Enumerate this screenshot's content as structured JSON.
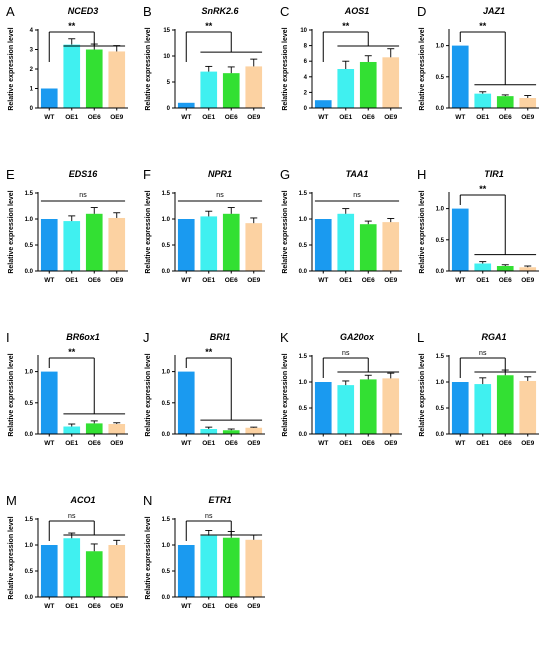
{
  "figure": {
    "bar_colors": [
      "#1a9af0",
      "#40f0f0",
      "#33e033",
      "#fcd2a2"
    ]
  },
  "chart_data": [
    {
      "type": "bar",
      "letter": "A",
      "title": "NCED3",
      "ylabel": "Relative expression level",
      "categories": [
        "WT",
        "OE1",
        "OE6",
        "OE9"
      ],
      "values": [
        1.0,
        3.25,
        3.0,
        2.9
      ],
      "errors": [
        0,
        0.3,
        0.28,
        0.3
      ],
      "ylim": [
        0,
        4
      ],
      "yticks": [
        "0",
        "1",
        "2",
        "3",
        "4"
      ],
      "significance": "**",
      "sig_style": "bracket"
    },
    {
      "type": "bar",
      "letter": "B",
      "title": "SnRK2.6",
      "ylabel": "Relative expression level",
      "categories": [
        "WT",
        "OE1",
        "OE6",
        "OE9"
      ],
      "values": [
        1.0,
        7.0,
        6.7,
        8.0
      ],
      "errors": [
        0,
        1.0,
        1.2,
        1.4
      ],
      "ylim": [
        0,
        15
      ],
      "yticks": [
        "0",
        "5",
        "10",
        "15"
      ],
      "significance": "**",
      "sig_style": "bracket"
    },
    {
      "type": "bar",
      "letter": "C",
      "title": "AOS1",
      "ylabel": "Relative expression level",
      "categories": [
        "WT",
        "OE1",
        "OE6",
        "OE9"
      ],
      "values": [
        1.0,
        5.0,
        5.9,
        6.5
      ],
      "errors": [
        0,
        1.0,
        0.8,
        1.1
      ],
      "ylim": [
        0,
        10
      ],
      "yticks": [
        "0",
        "2",
        "4",
        "6",
        "8",
        "10"
      ],
      "significance": "**",
      "sig_style": "bracket"
    },
    {
      "type": "bar",
      "letter": "D",
      "title": "JAZ1",
      "ylabel": "Relative expression level",
      "categories": [
        "WT",
        "OE1",
        "OE6",
        "OE9"
      ],
      "values": [
        1.0,
        0.23,
        0.19,
        0.16
      ],
      "errors": [
        0,
        0.03,
        0.02,
        0.04
      ],
      "ylim": [
        0,
        1.25
      ],
      "yticks": [
        "0.0",
        "0.5",
        "1.0"
      ],
      "significance": "**",
      "sig_style": "bracket"
    },
    {
      "type": "bar",
      "letter": "E",
      "title": "EDS16",
      "ylabel": "Relative expression level",
      "categories": [
        "WT",
        "OE1",
        "OE6",
        "OE9"
      ],
      "values": [
        1.0,
        0.96,
        1.1,
        1.02
      ],
      "errors": [
        0,
        0.1,
        0.12,
        0.1
      ],
      "ylim": [
        0,
        1.5
      ],
      "yticks": [
        "0.0",
        "0.5",
        "1.0",
        "1.5"
      ],
      "significance": "ns",
      "sig_style": "line"
    },
    {
      "type": "bar",
      "letter": "F",
      "title": "NPR1",
      "ylabel": "Relative expression level",
      "categories": [
        "WT",
        "OE1",
        "OE6",
        "OE9"
      ],
      "values": [
        1.0,
        1.05,
        1.1,
        0.92
      ],
      "errors": [
        0,
        0.1,
        0.12,
        0.1
      ],
      "ylim": [
        0,
        1.5
      ],
      "yticks": [
        "0.0",
        "0.5",
        "1.0",
        "1.5"
      ],
      "significance": "ns",
      "sig_style": "line"
    },
    {
      "type": "bar",
      "letter": "G",
      "title": "TAA1",
      "ylabel": "Relative expression level",
      "categories": [
        "WT",
        "OE1",
        "OE6",
        "OE9"
      ],
      "values": [
        1.0,
        1.1,
        0.9,
        0.94
      ],
      "errors": [
        0,
        0.1,
        0.06,
        0.07
      ],
      "ylim": [
        0,
        1.5
      ],
      "yticks": [
        "0.0",
        "0.5",
        "1.0",
        "1.5"
      ],
      "significance": "ns",
      "sig_style": "line"
    },
    {
      "type": "bar",
      "letter": "H",
      "title": "TIR1",
      "ylabel": "Relative expression level",
      "categories": [
        "WT",
        "OE1",
        "OE6",
        "OE9"
      ],
      "values": [
        1.0,
        0.12,
        0.08,
        0.06
      ],
      "errors": [
        0,
        0.03,
        0.02,
        0.02
      ],
      "ylim": [
        0,
        1.25
      ],
      "yticks": [
        "0.0",
        "0.5",
        "1.0"
      ],
      "significance": "**",
      "sig_style": "bracket"
    },
    {
      "type": "bar",
      "letter": "I",
      "title": "BR6ox1",
      "ylabel": "Relative expression level",
      "categories": [
        "WT",
        "OE1",
        "OE6",
        "OE9"
      ],
      "values": [
        1.0,
        0.12,
        0.17,
        0.16
      ],
      "errors": [
        0,
        0.04,
        0.04,
        0.02
      ],
      "ylim": [
        0,
        1.25
      ],
      "yticks": [
        "0.0",
        "0.5",
        "1.0"
      ],
      "significance": "**",
      "sig_style": "bracket"
    },
    {
      "type": "bar",
      "letter": "J",
      "title": "BRI1",
      "ylabel": "Relative expression level",
      "categories": [
        "WT",
        "OE1",
        "OE6",
        "OE9"
      ],
      "values": [
        1.0,
        0.08,
        0.06,
        0.1
      ],
      "errors": [
        0,
        0.03,
        0.02,
        0.01
      ],
      "ylim": [
        0,
        1.25
      ],
      "yticks": [
        "0.0",
        "0.5",
        "1.0"
      ],
      "significance": "**",
      "sig_style": "bracket"
    },
    {
      "type": "bar",
      "letter": "K",
      "title": "GA20ox",
      "ylabel": "Relative expression level",
      "categories": [
        "WT",
        "OE1",
        "OE6",
        "OE9"
      ],
      "values": [
        1.0,
        0.94,
        1.05,
        1.07
      ],
      "errors": [
        0,
        0.08,
        0.08,
        0.1
      ],
      "ylim": [
        0,
        1.5
      ],
      "yticks": [
        "0.0",
        "0.5",
        "1.0",
        "1.5"
      ],
      "significance": "ns",
      "sig_style": "bracket"
    },
    {
      "type": "bar",
      "letter": "L",
      "title": "RGA1",
      "ylabel": "Relative expression level",
      "categories": [
        "WT",
        "OE1",
        "OE6",
        "OE9"
      ],
      "values": [
        1.0,
        0.96,
        1.13,
        1.02
      ],
      "errors": [
        0,
        0.12,
        0.1,
        0.08
      ],
      "ylim": [
        0,
        1.5
      ],
      "yticks": [
        "0.0",
        "0.5",
        "1.0",
        "1.5"
      ],
      "significance": "ns",
      "sig_style": "bracket"
    },
    {
      "type": "bar",
      "letter": "M",
      "title": "ACO1",
      "ylabel": "Relative expression level",
      "categories": [
        "WT",
        "OE1",
        "OE6",
        "OE9"
      ],
      "values": [
        1.0,
        1.13,
        0.88,
        1.0
      ],
      "errors": [
        0,
        0.1,
        0.14,
        0.09
      ],
      "ylim": [
        0,
        1.5
      ],
      "yticks": [
        "0.0",
        "0.5",
        "1.0",
        "1.5"
      ],
      "significance": "ns",
      "sig_style": "bracket"
    },
    {
      "type": "bar",
      "letter": "N",
      "title": "ETR1",
      "ylabel": "Relative expression level",
      "categories": [
        "WT",
        "OE1",
        "OE6",
        "OE9"
      ],
      "values": [
        1.0,
        1.18,
        1.14,
        1.1
      ],
      "errors": [
        0,
        0.1,
        0.12,
        0.09
      ],
      "ylim": [
        0,
        1.5
      ],
      "yticks": [
        "0.0",
        "0.5",
        "1.0",
        "1.5"
      ],
      "significance": "ns",
      "sig_style": "bracket"
    }
  ]
}
